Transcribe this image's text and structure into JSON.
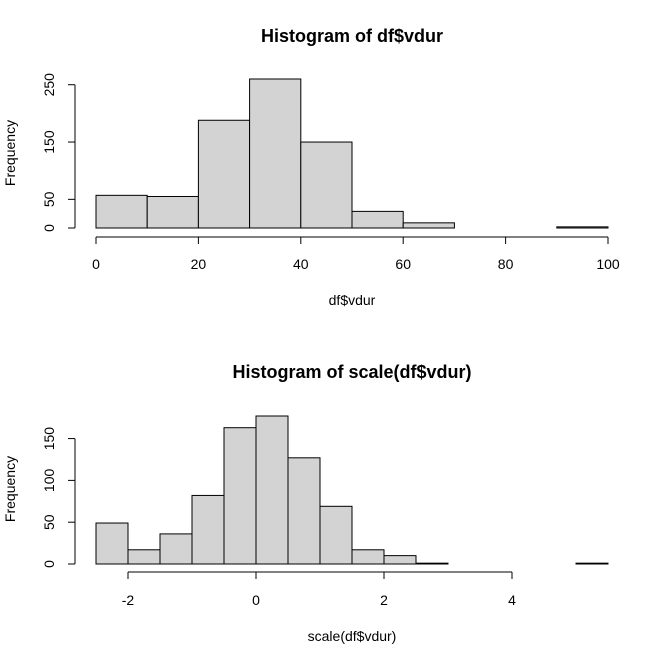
{
  "chart_data": [
    {
      "type": "bar",
      "title": "Histogram of df$vdur",
      "xlabel": "df$vdur",
      "ylabel": "Frequency",
      "bins": [
        {
          "from": 0,
          "to": 10,
          "count": 57
        },
        {
          "from": 10,
          "to": 20,
          "count": 55
        },
        {
          "from": 20,
          "to": 30,
          "count": 188
        },
        {
          "from": 30,
          "to": 40,
          "count": 260
        },
        {
          "from": 40,
          "to": 50,
          "count": 150
        },
        {
          "from": 50,
          "to": 60,
          "count": 29
        },
        {
          "from": 60,
          "to": 70,
          "count": 9
        },
        {
          "from": 70,
          "to": 80,
          "count": 0
        },
        {
          "from": 80,
          "to": 90,
          "count": 0
        },
        {
          "from": 90,
          "to": 100,
          "count": 2
        }
      ],
      "xlim": [
        0,
        100
      ],
      "ylim": [
        0,
        260
      ],
      "xticks": [
        0,
        20,
        40,
        60,
        80,
        100
      ],
      "yticks": [
        0,
        50,
        150,
        250
      ],
      "bar_color": "#d3d3d3",
      "grid": false
    },
    {
      "type": "bar",
      "title": "Histogram of scale(df$vdur)",
      "xlabel": "scale(df$vdur)",
      "ylabel": "Frequency",
      "bins": [
        {
          "from": -2.5,
          "to": -2.0,
          "count": 49
        },
        {
          "from": -2.0,
          "to": -1.5,
          "count": 17
        },
        {
          "from": -1.5,
          "to": -1.0,
          "count": 36
        },
        {
          "from": -1.0,
          "to": -0.5,
          "count": 82
        },
        {
          "from": -0.5,
          "to": 0.0,
          "count": 163
        },
        {
          "from": 0.0,
          "to": 0.5,
          "count": 177
        },
        {
          "from": 0.5,
          "to": 1.0,
          "count": 127
        },
        {
          "from": 1.0,
          "to": 1.5,
          "count": 69
        },
        {
          "from": 1.5,
          "to": 2.0,
          "count": 17
        },
        {
          "from": 2.0,
          "to": 2.5,
          "count": 10
        },
        {
          "from": 2.5,
          "to": 3.0,
          "count": 1
        },
        {
          "from": 3.0,
          "to": 3.5,
          "count": 0
        },
        {
          "from": 3.5,
          "to": 4.0,
          "count": 0
        },
        {
          "from": 4.0,
          "to": 4.5,
          "count": 0
        },
        {
          "from": 4.5,
          "to": 5.0,
          "count": 0
        },
        {
          "from": 5.0,
          "to": 5.5,
          "count": 1
        }
      ],
      "xlim": [
        -2.5,
        5.5
      ],
      "ylim": [
        0,
        177
      ],
      "xticks": [
        -2,
        0,
        2,
        4
      ],
      "yticks": [
        0,
        50,
        100,
        150
      ],
      "bar_color": "#d3d3d3",
      "grid": false
    }
  ]
}
